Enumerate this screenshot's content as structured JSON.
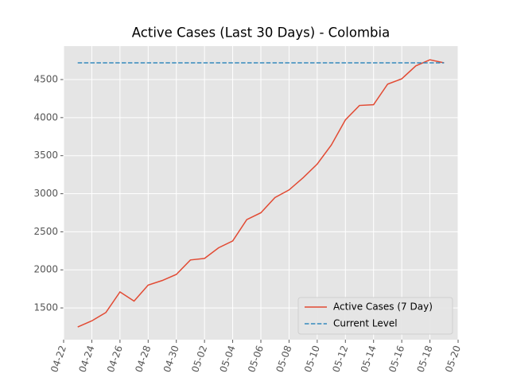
{
  "chart_data": {
    "type": "line",
    "title": "Active Cases (Last 30 Days) - Colombia",
    "series": [
      {
        "name": "Active Cases (7 Day)",
        "color": "#e24a33",
        "dash": "solid",
        "x": [
          "04-23",
          "04-24",
          "04-25",
          "04-26",
          "04-27",
          "04-28",
          "04-29",
          "04-30",
          "05-01",
          "05-02",
          "05-03",
          "05-04",
          "05-05",
          "05-06",
          "05-07",
          "05-08",
          "05-09",
          "05-10",
          "05-11",
          "05-12",
          "05-13",
          "05-14",
          "05-15",
          "05-16",
          "05-17",
          "05-18",
          "05-19"
        ],
        "values": [
          1250,
          1330,
          1440,
          1710,
          1590,
          1800,
          1860,
          1940,
          2130,
          2150,
          2290,
          2380,
          2660,
          2750,
          2950,
          3050,
          3210,
          3390,
          3640,
          3970,
          4160,
          4170,
          4440,
          4510,
          4680,
          4760,
          4720
        ]
      },
      {
        "name": "Current Level",
        "color": "#348abd",
        "dash": "dashed",
        "x": [
          "04-23",
          "05-19"
        ],
        "values": [
          4720,
          4720
        ]
      }
    ],
    "xlim": [
      "04-22",
      "05-20"
    ],
    "xticks": [
      "04-22",
      "04-24",
      "04-26",
      "04-28",
      "04-30",
      "05-02",
      "05-04",
      "05-06",
      "05-08",
      "05-10",
      "05-12",
      "05-14",
      "05-16",
      "05-18",
      "05-20"
    ],
    "ylim": [
      1083,
      4939
    ],
    "yticks": [
      1500,
      2000,
      2500,
      3000,
      3500,
      4000,
      4500
    ],
    "grid": true,
    "legend": "lower right"
  }
}
